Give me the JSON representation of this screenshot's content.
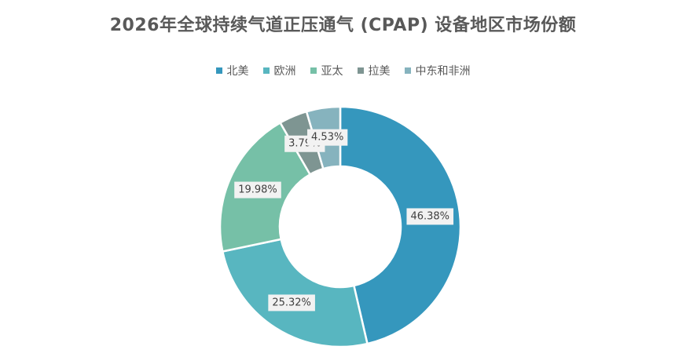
{
  "colors": {
    "北美": "#3597bd",
    "欧洲": "#58b6c0",
    "亚太": "#76c0a7",
    "拉美": "#7e9592",
    "中东和非洲": "#86b3be",
    "label_bg": "#f2f2f2",
    "text": "#595959"
  },
  "chart_data": {
    "type": "pie",
    "subtype": "donut",
    "title": "2026年全球持续气道正压通气 (CPAP) 设备地区市场份额",
    "legend_position": "top",
    "categories": [
      "北美",
      "欧洲",
      "亚太",
      "拉美",
      "中东和非洲"
    ],
    "values": [
      46.38,
      25.32,
      19.98,
      3.79,
      4.53
    ],
    "data_labels": [
      "46.38%",
      "25.32%",
      "19.98%",
      "3.79%",
      "4.53%"
    ],
    "unit": "%"
  }
}
